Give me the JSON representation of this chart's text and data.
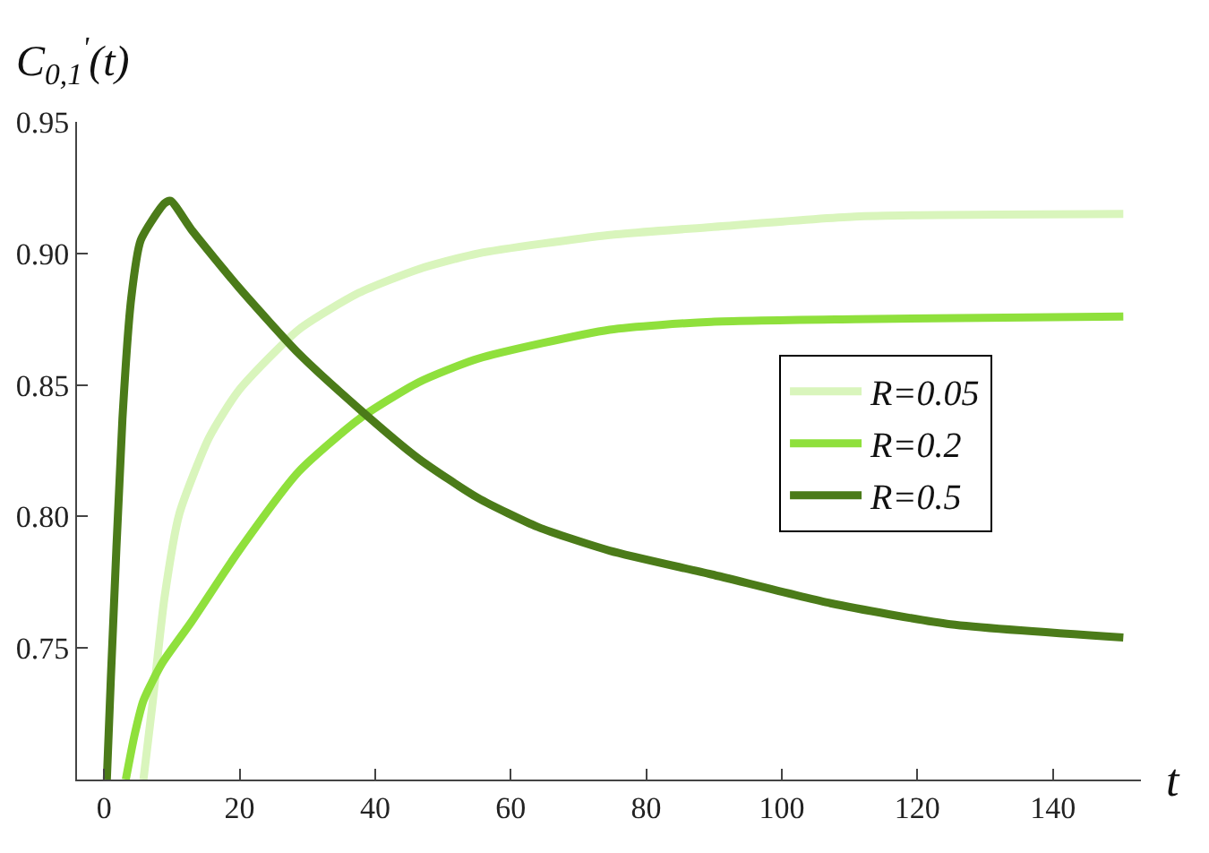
{
  "chart_data": {
    "type": "line",
    "ylabel": "C$_{0,1}$$^{'}$(t)",
    "xlabel": "t",
    "xlim": [
      -4,
      153
    ],
    "ylim": [
      0.7,
      0.95
    ],
    "xticks": [
      0,
      20,
      40,
      60,
      80,
      100,
      120,
      140
    ],
    "yticks": [
      {
        "value": 0.75,
        "label": "0.75"
      },
      {
        "value": 0.8,
        "label": "0.80"
      },
      {
        "value": 0.85,
        "label": "0.85"
      },
      {
        "value": 0.9,
        "label": "0.90"
      },
      {
        "value": 0.95,
        "label": "0.95"
      }
    ],
    "grid": false,
    "legend": "right",
    "marker": "none",
    "line_style": "solid",
    "series": [
      {
        "name": "R=0.05",
        "color": "#d9f5bc",
        "x": [
          5.8,
          7.1,
          8.9,
          11.1,
          15.5,
          19.9,
          28.7,
          37.6,
          46.4,
          55.2,
          74.6,
          89.6,
          110.8,
          150.4
        ],
        "values": [
          0.7,
          0.728,
          0.769,
          0.801,
          0.83,
          0.848,
          0.871,
          0.885,
          0.894,
          0.9,
          0.907,
          0.91,
          0.914,
          0.915
        ]
      },
      {
        "name": "R=0.2",
        "color": "#8fe03c",
        "x": [
          3.2,
          4.5,
          5.8,
          8.5,
          12.9,
          19.9,
          28.7,
          37.6,
          46.4,
          55.2,
          74.6,
          89.6,
          110.8,
          150.4
        ],
        "values": [
          0.7,
          0.717,
          0.73,
          0.744,
          0.76,
          0.787,
          0.817,
          0.837,
          0.851,
          0.86,
          0.871,
          0.874,
          0.875,
          0.876
        ]
      },
      {
        "name": "R=0.5",
        "color": "#4b7b19",
        "x": [
          0.4,
          1.0,
          2.7,
          4.0,
          5.4,
          8.9,
          9.8,
          12.9,
          19.9,
          28.7,
          37.6,
          46.4,
          55.2,
          64,
          74.6,
          89.6,
          107.2,
          124.9,
          150.4
        ],
        "values": [
          0.7,
          0.739,
          0.837,
          0.883,
          0.905,
          0.919,
          0.92,
          0.909,
          0.887,
          0.862,
          0.841,
          0.822,
          0.807,
          0.796,
          0.787,
          0.778,
          0.767,
          0.759,
          0.754
        ]
      }
    ]
  }
}
